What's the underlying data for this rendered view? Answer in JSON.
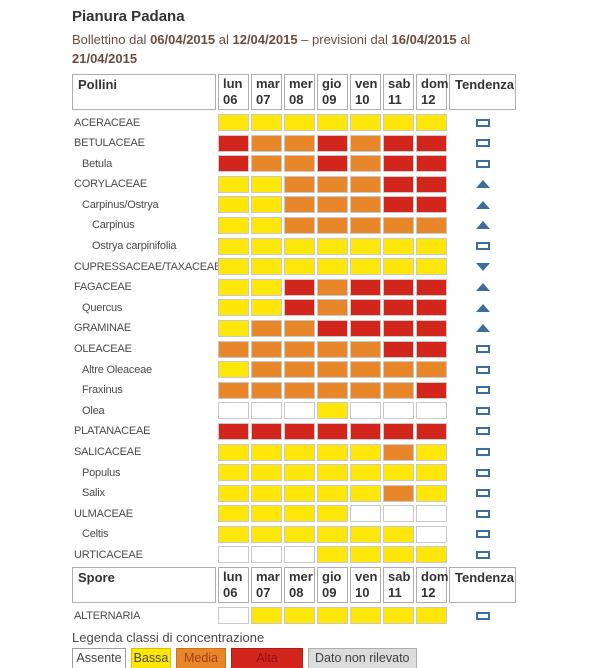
{
  "page": {
    "title": "Pianura Padana",
    "subtitle": {
      "s1": "Bollettino dal ",
      "d1": "06/04/2015",
      "s2": " al ",
      "d2": "12/04/2015",
      "s3": " – previsioni dal ",
      "d3": "16/04/2015",
      "s4": " al ",
      "d4": "21/04/2015"
    }
  },
  "chart_data": {
    "type": "heatmap",
    "title": "Pianura Padana – Bollettino pollini 06/04/2015 - 12/04/2015",
    "x_categories": [
      "lun 06",
      "mar 07",
      "mer 08",
      "gio 09",
      "ven 10",
      "sab 11",
      "dom 12"
    ],
    "value_levels": [
      "assente",
      "bassa",
      "media",
      "alta"
    ],
    "tables": [
      {
        "header": {
          "label": "Pollini",
          "days": [
            {
              "name": "lun",
              "num": "06"
            },
            {
              "name": "mar",
              "num": "07"
            },
            {
              "name": "mer",
              "num": "08"
            },
            {
              "name": "gio",
              "num": "09"
            },
            {
              "name": "ven",
              "num": "10"
            },
            {
              "name": "sab",
              "num": "11"
            },
            {
              "name": "dom",
              "num": "12"
            }
          ],
          "trend": "Tendenza"
        },
        "rows": [
          {
            "label": "ACERACEAE",
            "indent": 0,
            "values": [
              "bassa",
              "bassa",
              "bassa",
              "bassa",
              "bassa",
              "bassa",
              "bassa"
            ],
            "trend": "stable"
          },
          {
            "label": "BETULACEAE",
            "indent": 0,
            "values": [
              "alta",
              "media",
              "media",
              "alta",
              "media",
              "alta",
              "alta"
            ],
            "trend": "stable"
          },
          {
            "label": "Betula",
            "indent": 1,
            "values": [
              "alta",
              "media",
              "media",
              "alta",
              "media",
              "alta",
              "alta"
            ],
            "trend": "stable"
          },
          {
            "label": "CORYLACEAE",
            "indent": 0,
            "values": [
              "bassa",
              "bassa",
              "media",
              "media",
              "media",
              "alta",
              "alta"
            ],
            "trend": "up"
          },
          {
            "label": "Carpinus/Ostrya",
            "indent": 1,
            "values": [
              "bassa",
              "bassa",
              "media",
              "media",
              "media",
              "alta",
              "alta"
            ],
            "trend": "up"
          },
          {
            "label": "Carpinus",
            "indent": 2,
            "values": [
              "bassa",
              "bassa",
              "media",
              "media",
              "media",
              "media",
              "media"
            ],
            "trend": "up"
          },
          {
            "label": "Ostrya carpinifolia",
            "indent": 2,
            "values": [
              "bassa",
              "bassa",
              "bassa",
              "bassa",
              "bassa",
              "bassa",
              "bassa"
            ],
            "trend": "stable"
          },
          {
            "label": "CUPRESSACEAE/TAXACEAE",
            "indent": 0,
            "values": [
              "bassa",
              "bassa",
              "bassa",
              "bassa",
              "bassa",
              "bassa",
              "bassa"
            ],
            "trend": "down"
          },
          {
            "label": "FAGACEAE",
            "indent": 0,
            "values": [
              "bassa",
              "bassa",
              "alta",
              "media",
              "alta",
              "alta",
              "alta"
            ],
            "trend": "up"
          },
          {
            "label": "Quercus",
            "indent": 1,
            "values": [
              "bassa",
              "bassa",
              "alta",
              "media",
              "alta",
              "alta",
              "alta"
            ],
            "trend": "up"
          },
          {
            "label": "GRAMINAE",
            "indent": 0,
            "values": [
              "bassa",
              "media",
              "media",
              "alta",
              "alta",
              "alta",
              "alta"
            ],
            "trend": "up"
          },
          {
            "label": "OLEACEAE",
            "indent": 0,
            "values": [
              "media",
              "media",
              "media",
              "media",
              "media",
              "alta",
              "alta"
            ],
            "trend": "stable"
          },
          {
            "label": "Altre Oleaceae",
            "indent": 1,
            "values": [
              "bassa",
              "media",
              "media",
              "media",
              "media",
              "media",
              "media"
            ],
            "trend": "stable"
          },
          {
            "label": "Fraxinus",
            "indent": 1,
            "values": [
              "media",
              "media",
              "media",
              "media",
              "media",
              "media",
              "alta"
            ],
            "trend": "stable"
          },
          {
            "label": "Olea",
            "indent": 1,
            "values": [
              "assente",
              "assente",
              "assente",
              "bassa",
              "assente",
              "assente",
              "assente"
            ],
            "trend": "stable"
          },
          {
            "label": "PLATANACEAE",
            "indent": 0,
            "values": [
              "alta",
              "alta",
              "alta",
              "alta",
              "alta",
              "alta",
              "alta"
            ],
            "trend": "stable"
          },
          {
            "label": "SALICACEAE",
            "indent": 0,
            "values": [
              "bassa",
              "bassa",
              "bassa",
              "bassa",
              "bassa",
              "media",
              "bassa"
            ],
            "trend": "stable"
          },
          {
            "label": "Populus",
            "indent": 1,
            "values": [
              "bassa",
              "bassa",
              "bassa",
              "bassa",
              "bassa",
              "bassa",
              "bassa"
            ],
            "trend": "stable"
          },
          {
            "label": "Salix",
            "indent": 1,
            "values": [
              "bassa",
              "bassa",
              "bassa",
              "bassa",
              "bassa",
              "media",
              "bassa"
            ],
            "trend": "stable"
          },
          {
            "label": "ULMACEAE",
            "indent": 0,
            "values": [
              "bassa",
              "bassa",
              "bassa",
              "bassa",
              "assente",
              "assente",
              "assente"
            ],
            "trend": "stable"
          },
          {
            "label": "Celtis",
            "indent": 1,
            "values": [
              "bassa",
              "bassa",
              "bassa",
              "bassa",
              "bassa",
              "bassa",
              "assente"
            ],
            "trend": "stable"
          },
          {
            "label": "URTICACEAE",
            "indent": 0,
            "values": [
              "assente",
              "assente",
              "assente",
              "bassa",
              "bassa",
              "bassa",
              "bassa"
            ],
            "trend": "stable"
          }
        ]
      },
      {
        "header": {
          "label": "Spore",
          "days": [
            {
              "name": "lun",
              "num": "06"
            },
            {
              "name": "mar",
              "num": "07"
            },
            {
              "name": "mer",
              "num": "08"
            },
            {
              "name": "gio",
              "num": "09"
            },
            {
              "name": "ven",
              "num": "10"
            },
            {
              "name": "sab",
              "num": "11"
            },
            {
              "name": "dom",
              "num": "12"
            }
          ],
          "trend": "Tendenza"
        },
        "rows": [
          {
            "label": "ALTERNARIA",
            "indent": 0,
            "values": [
              "assente",
              "bassa",
              "bassa",
              "bassa",
              "bassa",
              "bassa",
              "bassa"
            ],
            "trend": "stable"
          }
        ]
      }
    ],
    "legend": {
      "title": "Legenda classi di concentrazione",
      "items": [
        {
          "label": "Assente",
          "key": "assente"
        },
        {
          "label": "Bassa",
          "key": "bassa"
        },
        {
          "label": "Media",
          "key": "media"
        },
        {
          "label": "Alta",
          "key": "alta"
        },
        {
          "label": "Dato non rilevato",
          "key": "nodata"
        }
      ]
    }
  },
  "colors": {
    "assente": "#FFFFFF",
    "bassa": "#FFE609",
    "media": "#E8872A",
    "alta": "#D2251C",
    "nodata": "#DCDCDC",
    "trend": "#3E6D9C",
    "subtitle": "#6E4B3E"
  }
}
